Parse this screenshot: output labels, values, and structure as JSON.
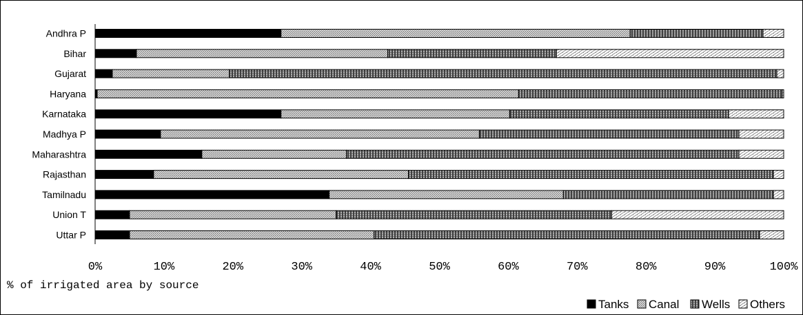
{
  "chart_data": {
    "type": "bar",
    "orientation": "horizontal",
    "stacked": "percent",
    "categories": [
      "Andhra P",
      "Bihar",
      "Gujarat",
      "Haryana",
      "Karnataka",
      "Madhya P",
      "Maharashtra",
      "Rajasthan",
      "Tamilnadu",
      "Union T",
      "Uttar P"
    ],
    "series": [
      {
        "name": "Tanks",
        "values": [
          27.0,
          6.0,
          2.5,
          0.3,
          27.0,
          9.5,
          15.5,
          8.5,
          34.0,
          5.0,
          5.0
        ]
      },
      {
        "name": "Canal",
        "values": [
          50.7,
          36.5,
          17.0,
          61.2,
          33.2,
          46.3,
          21.0,
          37.0,
          34.0,
          30.0,
          35.5
        ]
      },
      {
        "name": "Wells",
        "values": [
          19.3,
          24.5,
          79.5,
          38.3,
          31.8,
          37.7,
          57.0,
          53.0,
          30.5,
          40.0,
          56.0
        ]
      },
      {
        "name": "Others",
        "values": [
          3.0,
          33.0,
          1.0,
          0.2,
          8.0,
          6.5,
          6.5,
          1.5,
          1.5,
          25.0,
          3.5
        ]
      }
    ],
    "xlabel": "% of irrigated area by source",
    "ylabel": "",
    "xlim": [
      0,
      100
    ],
    "xticks": [
      "0%",
      "10%",
      "20%",
      "30%",
      "40%",
      "50%",
      "60%",
      "70%",
      "80%",
      "90%",
      "100%"
    ],
    "legend_position": "bottom-right",
    "grid": false,
    "colors": {
      "Tanks": "#000000",
      "Canal": "#bdbdbd",
      "Wells": "#7f7f7f",
      "Others": "#f2f2f2"
    }
  }
}
